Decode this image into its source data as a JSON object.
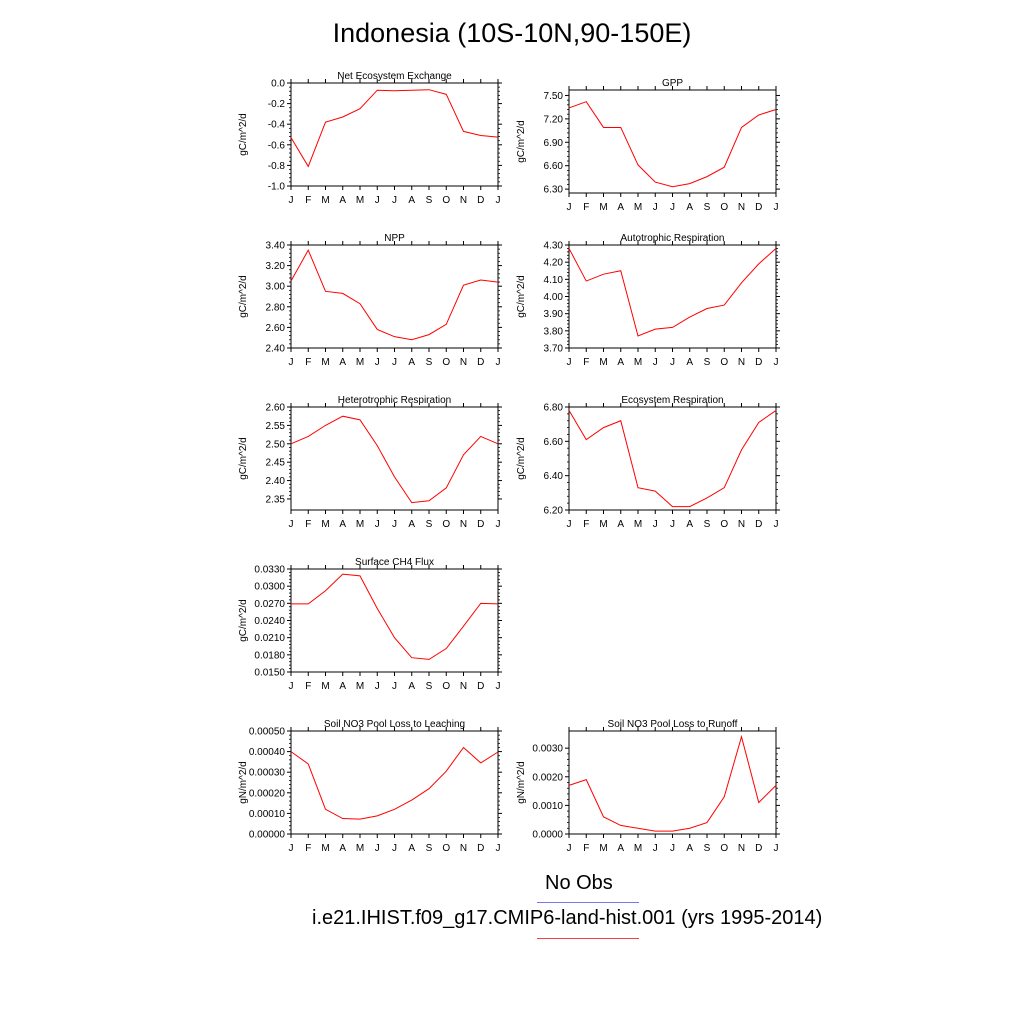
{
  "title": "Indonesia (10S-10N,90-150E)",
  "legend": {
    "obs_label": "No Obs",
    "obs_color": "#7777ee",
    "model_label": "i.e21.IHIST.f09_g17.CMIP6-land-hist.001 (yrs 1995-2014)",
    "model_color": "#ee4444"
  },
  "line_color": "#ff0000",
  "months": [
    "J",
    "F",
    "M",
    "A",
    "M",
    "J",
    "J",
    "A",
    "S",
    "O",
    "N",
    "D",
    "J"
  ],
  "chart_data": [
    {
      "type": "line",
      "title": "Net Ecosystem Exchange",
      "ylabel": "gC/m^2/d",
      "ylim": [
        -1.0,
        0.0
      ],
      "ticks": [
        -1.0,
        -0.8,
        -0.6,
        -0.4,
        -0.2,
        0.0
      ],
      "tick_labels": [
        "-1.0",
        "-0.8",
        "-0.6",
        "-0.4",
        "-0.2",
        "0.0"
      ],
      "values": [
        -0.53,
        -0.81,
        -0.38,
        -0.33,
        -0.25,
        -0.07,
        -0.075,
        -0.07,
        -0.065,
        -0.11,
        -0.47,
        -0.51,
        -0.525
      ]
    },
    {
      "type": "line",
      "title": "GPP",
      "ylabel": "gC/m^2/d",
      "ylim": [
        6.25,
        7.57
      ],
      "ticks": [
        6.3,
        6.6,
        6.9,
        7.2,
        7.5
      ],
      "tick_labels": [
        "6.30",
        "6.60",
        "6.90",
        "7.20",
        "7.50"
      ],
      "values": [
        7.34,
        7.42,
        7.09,
        7.09,
        6.61,
        6.39,
        6.33,
        6.37,
        6.46,
        6.58,
        7.09,
        7.25,
        7.32
      ]
    },
    {
      "type": "line",
      "title": "NPP",
      "ylabel": "gC/m^2/d",
      "ylim": [
        2.4,
        3.4
      ],
      "ticks": [
        2.4,
        2.6,
        2.8,
        3.0,
        3.2,
        3.4
      ],
      "tick_labels": [
        "2.40",
        "2.60",
        "2.80",
        "3.00",
        "3.20",
        "3.40"
      ],
      "values": [
        3.05,
        3.35,
        2.95,
        2.93,
        2.83,
        2.58,
        2.51,
        2.48,
        2.53,
        2.63,
        3.01,
        3.06,
        3.04
      ]
    },
    {
      "type": "line",
      "title": "Autotrophic Respiration",
      "ylabel": "gC/m^2/d",
      "ylim": [
        3.7,
        4.3
      ],
      "ticks": [
        3.7,
        3.8,
        3.9,
        4.0,
        4.1,
        4.2,
        4.3
      ],
      "tick_labels": [
        "3.70",
        "3.80",
        "3.90",
        "4.00",
        "4.10",
        "4.20",
        "4.30"
      ],
      "values": [
        4.28,
        4.09,
        4.13,
        4.15,
        3.77,
        3.81,
        3.82,
        3.88,
        3.93,
        3.95,
        4.08,
        4.19,
        4.28
      ]
    },
    {
      "type": "line",
      "title": "Heterotrophic Respiration",
      "ylabel": "gC/m^2/d",
      "ylim": [
        2.32,
        2.6
      ],
      "ticks": [
        2.35,
        2.4,
        2.45,
        2.5,
        2.55,
        2.6
      ],
      "tick_labels": [
        "2.35",
        "2.40",
        "2.45",
        "2.50",
        "2.55",
        "2.60"
      ],
      "values": [
        2.5,
        2.52,
        2.55,
        2.575,
        2.565,
        2.495,
        2.41,
        2.34,
        2.345,
        2.38,
        2.47,
        2.52,
        2.5
      ]
    },
    {
      "type": "line",
      "title": "Ecosystem Respiration",
      "ylabel": "gC/m^2/d",
      "ylim": [
        6.2,
        6.8
      ],
      "ticks": [
        6.2,
        6.4,
        6.6,
        6.8
      ],
      "tick_labels": [
        "6.20",
        "6.40",
        "6.60",
        "6.80"
      ],
      "values": [
        6.78,
        6.61,
        6.68,
        6.72,
        6.33,
        6.31,
        6.22,
        6.22,
        6.27,
        6.33,
        6.55,
        6.71,
        6.78
      ]
    },
    {
      "type": "line",
      "title": "Surface CH4 Flux",
      "ylabel": "gC/m^2/d",
      "ylim": [
        0.015,
        0.033
      ],
      "ticks": [
        0.015,
        0.018,
        0.021,
        0.024,
        0.027,
        0.03,
        0.033
      ],
      "tick_labels": [
        "0.0150",
        "0.0180",
        "0.0210",
        "0.0240",
        "0.0270",
        "0.0300",
        "0.0330"
      ],
      "values": [
        0.0269,
        0.0269,
        0.0292,
        0.0321,
        0.0318,
        0.0261,
        0.021,
        0.0175,
        0.0172,
        0.0191,
        0.023,
        0.027,
        0.0269
      ]
    },
    {
      "type": "line",
      "title": "Soil NO3 Pool Loss to Leaching",
      "ylabel": "gN/m^2/d",
      "ylim": [
        0.0,
        0.0005
      ],
      "ticks": [
        0.0,
        0.0001,
        0.0002,
        0.0003,
        0.0004,
        0.0005
      ],
      "tick_labels": [
        "0.00000",
        "0.00010",
        "0.00020",
        "0.00030",
        "0.00040",
        "0.00050"
      ],
      "values": [
        0.0004,
        0.00034,
        0.00012,
        7.5e-05,
        7.2e-05,
        8.8e-05,
        0.00012,
        0.000165,
        0.00022,
        0.000305,
        0.00042,
        0.000345,
        0.000398
      ]
    },
    {
      "type": "line",
      "title": "Soil NO3 Pool Loss to Runoff",
      "ylabel": "gN/m^2/d",
      "ylim": [
        0.0,
        0.0036
      ],
      "ticks": [
        0.0,
        0.001,
        0.002,
        0.003
      ],
      "tick_labels": [
        "0.0000",
        "0.0010",
        "0.0020",
        "0.0030"
      ],
      "values": [
        0.0017,
        0.0019,
        0.0006,
        0.0003,
        0.0002,
        0.0001,
        0.0001,
        0.0002,
        0.0004,
        0.0013,
        0.0034,
        0.0011,
        0.0017
      ]
    }
  ]
}
